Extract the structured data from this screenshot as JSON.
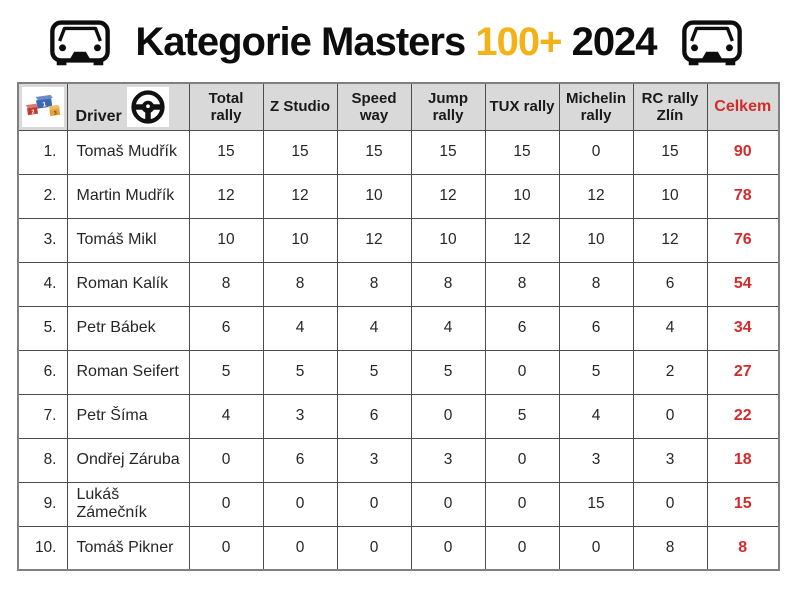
{
  "title": {
    "prefix": "Kategorie Masters ",
    "highlight": "100+",
    "suffix": " 2024"
  },
  "icons": {
    "left": "car-front-icon",
    "right": "car-front-icon",
    "position_header": "podium-icon",
    "driver_header": "steering-wheel-icon"
  },
  "colors": {
    "gold": "#F2B218",
    "red": "#D22B2B",
    "header_bg": "#D9D9D9",
    "grid": "#4d4d4d",
    "outer_border": "#808080"
  },
  "table": {
    "headers": {
      "driver_label": "Driver",
      "events": [
        "Total rally",
        "Z Studio",
        "Speed way",
        "Jump rally",
        "TUX rally",
        "Michelin rally",
        "RC rally Zlín"
      ],
      "total_label": "Celkem"
    },
    "rows": [
      {
        "position": "1.",
        "driver": "Tomaš Mudřík",
        "scores": [
          15,
          15,
          15,
          15,
          15,
          0,
          15
        ],
        "total": 90
      },
      {
        "position": "2.",
        "driver": "Martin Mudřík",
        "scores": [
          12,
          12,
          10,
          12,
          10,
          12,
          10
        ],
        "total": 78
      },
      {
        "position": "3.",
        "driver": "Tomáš Mikl",
        "scores": [
          10,
          10,
          12,
          10,
          12,
          10,
          12
        ],
        "total": 76
      },
      {
        "position": "4.",
        "driver": "Roman Kalík",
        "scores": [
          8,
          8,
          8,
          8,
          8,
          8,
          6
        ],
        "total": 54
      },
      {
        "position": "5.",
        "driver": "Petr Bábek",
        "scores": [
          6,
          4,
          4,
          4,
          6,
          6,
          4
        ],
        "total": 34
      },
      {
        "position": "6.",
        "driver": "Roman Seifert",
        "scores": [
          5,
          5,
          5,
          5,
          0,
          5,
          2
        ],
        "total": 27
      },
      {
        "position": "7.",
        "driver": "Petr Šíma",
        "scores": [
          4,
          3,
          6,
          0,
          5,
          4,
          0
        ],
        "total": 22
      },
      {
        "position": "8.",
        "driver": "Ondřej Záruba",
        "scores": [
          0,
          6,
          3,
          3,
          0,
          3,
          3
        ],
        "total": 18
      },
      {
        "position": "9.",
        "driver": "Lukáš Zámečník",
        "scores": [
          0,
          0,
          0,
          0,
          0,
          15,
          0
        ],
        "total": 15
      },
      {
        "position": "10.",
        "driver": "Tomáš Pikner",
        "scores": [
          0,
          0,
          0,
          0,
          0,
          0,
          8
        ],
        "total": 8
      }
    ]
  }
}
